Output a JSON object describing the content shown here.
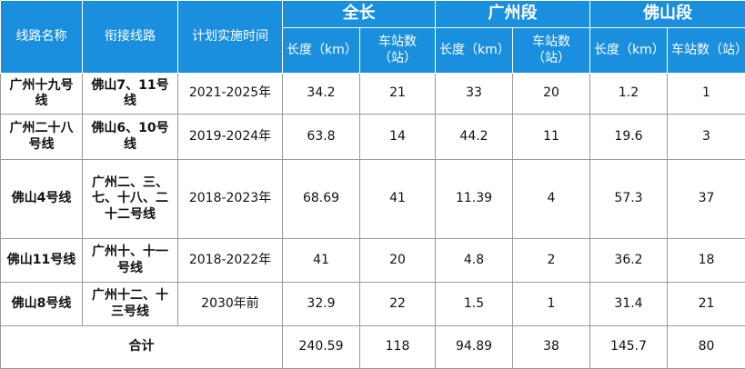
{
  "header": {
    "fixed": [
      "线路名称",
      "衔接线路",
      "计划实施时间"
    ],
    "groups": [
      "全长",
      "广州段",
      "佛山段"
    ],
    "sub": [
      "长度（km）",
      "车站数（站）",
      "长度（km）",
      "车站数（站）",
      "长度（km）",
      "车站数（站）"
    ]
  },
  "rows": [
    [
      "广州十九号线",
      "佛山7、11号线",
      "2021-2025年",
      34.2,
      21,
      33,
      20,
      1.2,
      1
    ],
    [
      "广州二十八号线",
      "佛山6、10号线",
      "2019-2024年",
      63.8,
      14,
      44.2,
      11,
      19.6,
      3
    ],
    [
      "佛山4号线",
      "广州二、三、七、十八、二十二号线",
      "2018-2023年",
      68.69,
      41,
      11.39,
      4,
      57.3,
      37
    ],
    [
      "佛山11号线",
      "广州十、十一号线",
      "2018-2022年",
      41,
      20,
      4.8,
      2,
      36.2,
      18
    ],
    [
      "佛山8号线",
      "广州十二、十三号线",
      "2030年前",
      32.9,
      22,
      1.5,
      1,
      31.4,
      21
    ]
  ],
  "total": {
    "label": "合计",
    "values": [
      240.59,
      118,
      94.89,
      38,
      145.7,
      80
    ]
  }
}
